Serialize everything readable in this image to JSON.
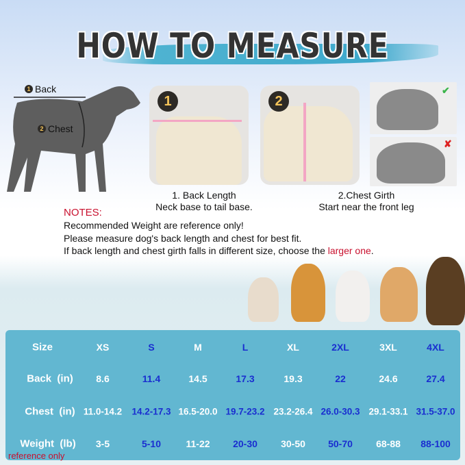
{
  "title": "HOW TO MEASURE",
  "diagram": {
    "back_label": "Back",
    "chest_label": "Chest",
    "back_num": "1",
    "chest_num": "2"
  },
  "steps": [
    {
      "num": "1",
      "title": "1. Back Length",
      "desc": "Neck base to tail base."
    },
    {
      "num": "2",
      "title": "2.Chest Girth",
      "desc": "Start near the front leg"
    }
  ],
  "check_icons": [
    "check-icon",
    "cross-icon"
  ],
  "notes": {
    "heading": "NOTES:",
    "line1": "Recommended Weight are reference only!",
    "line2": "Please measure dog's back length and chest for best fit.",
    "line3_prefix": "If back length and chest girth falls in different size, choose the ",
    "line3_highlight": "larger one",
    "line3_suffix": "."
  },
  "colors": {
    "table_bg": "#62b7d1",
    "highlight_blue": "#1a2ed0",
    "note_red": "#c8102e",
    "title_brush": "#3fa9cc"
  },
  "table": {
    "row_labels": [
      "Size",
      "Back  (in)",
      "Chest  (in)",
      "Weight  (lb)"
    ],
    "weight_note": "reference only",
    "sizes": [
      "XS",
      "S",
      "M",
      "L",
      "XL",
      "2XL",
      "3XL",
      "4XL"
    ],
    "back": [
      "8.6",
      "11.4",
      "14.5",
      "17.3",
      "19.3",
      "22",
      "24.6",
      "27.4"
    ],
    "chest": [
      "11.0-14.2",
      "14.2-17.3",
      "16.5-20.0",
      "19.7-23.2",
      "23.2-26.4",
      "26.0-30.3",
      "29.1-33.1",
      "31.5-37.0"
    ],
    "weight": [
      "3-5",
      "5-10",
      "11-22",
      "20-30",
      "30-50",
      "50-70",
      "68-88",
      "88-100"
    ]
  }
}
